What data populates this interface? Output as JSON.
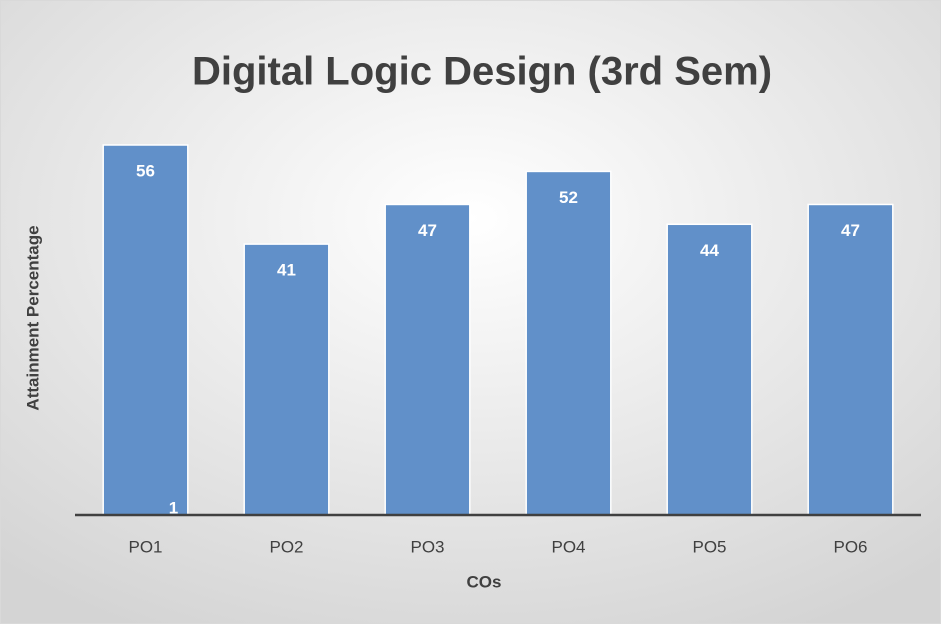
{
  "chart_data": {
    "type": "bar",
    "title": "Digital Logic Design (3rd Sem)",
    "x_label": "COs",
    "y_label": "Attainment Percentage",
    "categories": [
      "PO1",
      "PO2",
      "PO3",
      "PO4",
      "PO5",
      "PO6"
    ],
    "values": [
      56,
      41,
      47,
      52,
      44,
      47
    ],
    "color": "#6190c9",
    "ylim": [
      0,
      70
    ],
    "grid": false,
    "annotations": [
      "1"
    ]
  }
}
